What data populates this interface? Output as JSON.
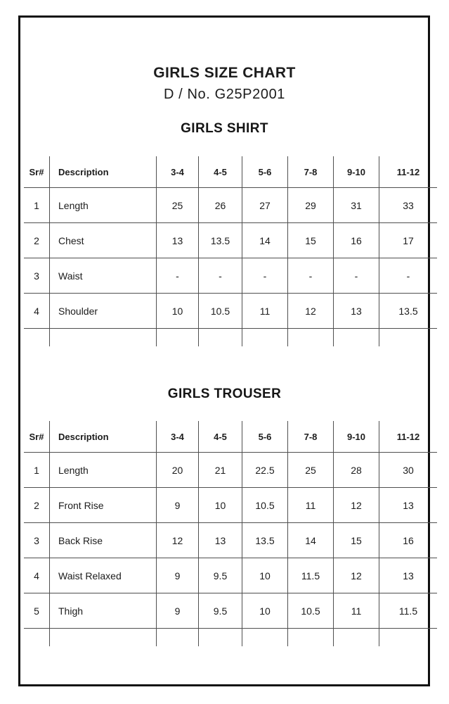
{
  "document": {
    "title": "GIRLS SIZE CHART",
    "subtitle": "D / No. G25P2001"
  },
  "tables": [
    {
      "heading": "GIRLS SHIRT",
      "columns": [
        "Sr#",
        "Description",
        "3-4",
        "4-5",
        "5-6",
        "7-8",
        "9-10",
        "11-12"
      ],
      "rows": [
        {
          "sr": "1",
          "description": "Length",
          "values": [
            "25",
            "26",
            "27",
            "29",
            "31",
            "33"
          ]
        },
        {
          "sr": "2",
          "description": "Chest",
          "values": [
            "13",
            "13.5",
            "14",
            "15",
            "16",
            "17"
          ]
        },
        {
          "sr": "3",
          "description": "Waist",
          "values": [
            "-",
            "-",
            "-",
            "-",
            "-",
            "-"
          ]
        },
        {
          "sr": "4",
          "description": "Shoulder",
          "values": [
            "10",
            "10.5",
            "11",
            "12",
            "13",
            "13.5"
          ]
        }
      ]
    },
    {
      "heading": "GIRLS TROUSER",
      "columns": [
        "Sr#",
        "Description",
        "3-4",
        "4-5",
        "5-6",
        "7-8",
        "9-10",
        "11-12"
      ],
      "rows": [
        {
          "sr": "1",
          "description": "Length",
          "values": [
            "20",
            "21",
            "22.5",
            "25",
            "28",
            "30"
          ]
        },
        {
          "sr": "2",
          "description": "Front Rise",
          "values": [
            "9",
            "10",
            "10.5",
            "11",
            "12",
            "13"
          ]
        },
        {
          "sr": "3",
          "description": "Back Rise",
          "values": [
            "12",
            "13",
            "13.5",
            "14",
            "15",
            "16"
          ]
        },
        {
          "sr": "4",
          "description": "Waist Relaxed",
          "values": [
            "9",
            "9.5",
            "10",
            "11.5",
            "12",
            "13"
          ]
        },
        {
          "sr": "5",
          "description": "Thigh",
          "values": [
            "9",
            "9.5",
            "10",
            "10.5",
            "11",
            "11.5"
          ]
        }
      ]
    }
  ],
  "colors": {
    "text": "#1c1c1c",
    "grid_line": "#4f4f4f",
    "page_border": "#101010",
    "background": "#ffffff"
  }
}
